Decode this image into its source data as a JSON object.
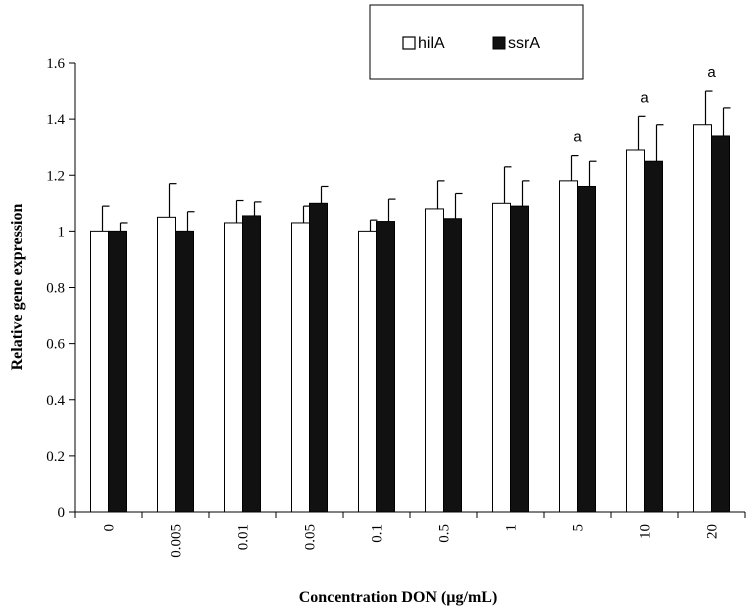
{
  "chart_data": {
    "type": "bar",
    "title": "",
    "xlabel": "Concentration DON (µg/mL)",
    "ylabel": "Relative gene expression",
    "ylim": [
      0,
      1.6
    ],
    "yticks": [
      "0",
      "0.2",
      "0.4",
      "0.6",
      "0.8",
      "1",
      "1.2",
      "1.4",
      "1.6"
    ],
    "categories": [
      "0",
      "0.005",
      "0.01",
      "0.05",
      "0.1",
      "0.5",
      "1",
      "5",
      "10",
      "20"
    ],
    "series": [
      {
        "name": "hilA",
        "color": "#ffffff",
        "values": [
          1.0,
          1.05,
          1.03,
          1.03,
          1.0,
          1.08,
          1.1,
          1.18,
          1.29,
          1.38
        ],
        "errors": [
          0.09,
          0.12,
          0.08,
          0.06,
          0.04,
          0.1,
          0.13,
          0.09,
          0.12,
          0.12
        ]
      },
      {
        "name": "ssrA",
        "color": "#111111",
        "values": [
          1.0,
          1.0,
          1.055,
          1.1,
          1.035,
          1.045,
          1.09,
          1.16,
          1.25,
          1.34
        ],
        "errors": [
          0.03,
          0.07,
          0.05,
          0.06,
          0.08,
          0.09,
          0.09,
          0.09,
          0.13,
          0.1
        ]
      }
    ],
    "annotations": [
      {
        "category_index": 7,
        "text": "a"
      },
      {
        "category_index": 8,
        "text": "a"
      },
      {
        "category_index": 9,
        "text": "a"
      }
    ],
    "legend": {
      "position": "top-right",
      "entries": [
        "hilA",
        "ssrA"
      ]
    },
    "grid": false
  }
}
